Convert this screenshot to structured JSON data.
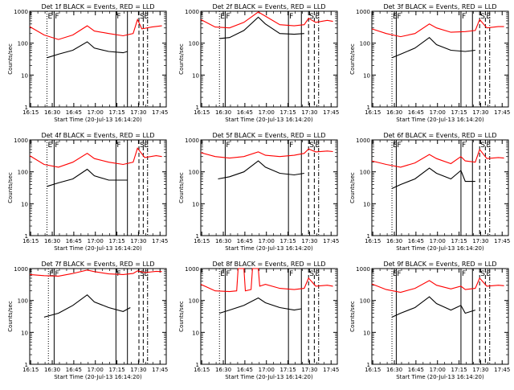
{
  "chart_data": {
    "type": "line",
    "layout": {
      "rows": 3,
      "cols": 3
    },
    "xlabel": "Start Time (20-Jul-13 16:14:20)",
    "ylabel": "Counts/sec",
    "yscale": "log",
    "ylim": [
      1,
      1000
    ],
    "y_tick_labels": [
      "1",
      "10",
      "100",
      "1000"
    ],
    "x_tick_labels": [
      "16:15",
      "16:30",
      "16:45",
      "17:00",
      "17:15",
      "17:30",
      "17:45"
    ],
    "x_domain_minutes": [
      0,
      95
    ],
    "colors": {
      "events": "#000000",
      "lld": "#ff0000",
      "frame": "#000000"
    },
    "panels": [
      {
        "title": "Det 1f BLACK = Events, RED = LLD",
        "markers": [
          {
            "t": 12,
            "style": "dotted",
            "label": "E"
          },
          {
            "t": 17,
            "style": "solid",
            "label": "F"
          },
          {
            "t": 60,
            "style": "solid",
            "label": "F"
          },
          {
            "t": 68,
            "style": "solid",
            "label": ""
          },
          {
            "t": 76,
            "style": "dashed",
            "label": "S"
          },
          {
            "t": 79,
            "style": "dashed",
            "label": "E"
          },
          {
            "t": 82,
            "style": "dashdot",
            "label": ""
          }
        ],
        "lld": [
          [
            0,
            330
          ],
          [
            10,
            180
          ],
          [
            20,
            130
          ],
          [
            30,
            180
          ],
          [
            40,
            350
          ],
          [
            45,
            240
          ],
          [
            55,
            200
          ],
          [
            65,
            170
          ],
          [
            72,
            200
          ],
          [
            75,
            550
          ],
          [
            78,
            280
          ],
          [
            85,
            320
          ],
          [
            92,
            350
          ]
        ],
        "events": [
          [
            12,
            35
          ],
          [
            20,
            45
          ],
          [
            30,
            60
          ],
          [
            40,
            110
          ],
          [
            45,
            70
          ],
          [
            55,
            55
          ],
          [
            65,
            50
          ],
          [
            68,
            55
          ]
        ]
      },
      {
        "title": "Det 2f BLACK = Events, RED = LLD",
        "markers": [
          {
            "t": 13,
            "style": "dotted",
            "label": "E"
          },
          {
            "t": 17,
            "style": "solid",
            "label": "F"
          },
          {
            "t": 61,
            "style": "solid",
            "label": "F"
          },
          {
            "t": 70,
            "style": "solid",
            "label": ""
          },
          {
            "t": 75,
            "style": "dashed",
            "label": "S"
          },
          {
            "t": 79,
            "style": "dashed",
            "label": "E"
          },
          {
            "t": 82,
            "style": "dashdot",
            "label": ""
          }
        ],
        "lld": [
          [
            0,
            550
          ],
          [
            10,
            320
          ],
          [
            20,
            300
          ],
          [
            30,
            450
          ],
          [
            40,
            950
          ],
          [
            45,
            700
          ],
          [
            55,
            380
          ],
          [
            65,
            350
          ],
          [
            72,
            380
          ],
          [
            75,
            600
          ],
          [
            80,
            450
          ],
          [
            88,
            520
          ],
          [
            92,
            480
          ]
        ],
        "events": [
          [
            13,
            140
          ],
          [
            20,
            150
          ],
          [
            30,
            250
          ],
          [
            40,
            650
          ],
          [
            45,
            400
          ],
          [
            55,
            200
          ],
          [
            65,
            190
          ],
          [
            72,
            200
          ]
        ]
      },
      {
        "title": "Det 3f BLACK = Events, RED = LLD",
        "markers": [
          {
            "t": 14,
            "style": "dotted",
            "label": "E"
          },
          {
            "t": 17,
            "style": "solid",
            "label": "F"
          },
          {
            "t": 62,
            "style": "solid",
            "label": "F"
          },
          {
            "t": 70,
            "style": "solid",
            "label": ""
          },
          {
            "t": 75,
            "style": "dashed",
            "label": "S"
          },
          {
            "t": 79,
            "style": "dashed",
            "label": "E"
          },
          {
            "t": 82,
            "style": "dashdot",
            "label": ""
          }
        ],
        "lld": [
          [
            0,
            280
          ],
          [
            10,
            200
          ],
          [
            20,
            160
          ],
          [
            30,
            200
          ],
          [
            40,
            400
          ],
          [
            45,
            300
          ],
          [
            55,
            220
          ],
          [
            65,
            230
          ],
          [
            72,
            250
          ],
          [
            75,
            550
          ],
          [
            80,
            300
          ],
          [
            88,
            330
          ],
          [
            92,
            330
          ]
        ],
        "events": [
          [
            14,
            35
          ],
          [
            20,
            45
          ],
          [
            30,
            70
          ],
          [
            40,
            150
          ],
          [
            45,
            90
          ],
          [
            55,
            60
          ],
          [
            65,
            55
          ],
          [
            72,
            60
          ]
        ]
      },
      {
        "title": "Det 4f BLACK = Events, RED = LLD",
        "markers": [
          {
            "t": 12,
            "style": "dotted",
            "label": "E"
          },
          {
            "t": 17,
            "style": "solid",
            "label": "F"
          },
          {
            "t": 60,
            "style": "solid",
            "label": "F"
          },
          {
            "t": 68,
            "style": "solid",
            "label": ""
          },
          {
            "t": 76,
            "style": "dashed",
            "label": "S"
          },
          {
            "t": 79,
            "style": "dashed",
            "label": "E"
          },
          {
            "t": 82,
            "style": "dashdot",
            "label": ""
          }
        ],
        "lld": [
          [
            0,
            320
          ],
          [
            10,
            170
          ],
          [
            20,
            140
          ],
          [
            30,
            200
          ],
          [
            40,
            380
          ],
          [
            45,
            260
          ],
          [
            55,
            200
          ],
          [
            65,
            170
          ],
          [
            72,
            200
          ],
          [
            75,
            550
          ],
          [
            80,
            280
          ],
          [
            88,
            320
          ],
          [
            92,
            300
          ]
        ],
        "events": [
          [
            12,
            35
          ],
          [
            20,
            45
          ],
          [
            30,
            60
          ],
          [
            40,
            120
          ],
          [
            45,
            75
          ],
          [
            55,
            55
          ],
          [
            65,
            55
          ],
          [
            68,
            55
          ]
        ]
      },
      {
        "title": "Det 5f BLACK = Events, RED = LLD",
        "markers": [
          {
            "t": 17,
            "style": "solid",
            "label": "F"
          },
          {
            "t": 61,
            "style": "solid",
            "label": "F"
          },
          {
            "t": 70,
            "style": "solid",
            "label": ""
          },
          {
            "t": 75,
            "style": "dashed",
            "label": "S"
          },
          {
            "t": 79,
            "style": "dashed",
            "label": "E"
          },
          {
            "t": 82,
            "style": "dashdot",
            "label": ""
          }
        ],
        "lld": [
          [
            0,
            400
          ],
          [
            10,
            300
          ],
          [
            20,
            270
          ],
          [
            30,
            300
          ],
          [
            40,
            420
          ],
          [
            45,
            330
          ],
          [
            55,
            300
          ],
          [
            65,
            330
          ],
          [
            72,
            380
          ],
          [
            75,
            520
          ],
          [
            80,
            420
          ],
          [
            88,
            450
          ],
          [
            92,
            430
          ]
        ],
        "events": [
          [
            12,
            60
          ],
          [
            20,
            70
          ],
          [
            30,
            100
          ],
          [
            40,
            220
          ],
          [
            45,
            140
          ],
          [
            55,
            90
          ],
          [
            65,
            80
          ],
          [
            72,
            90
          ]
        ]
      },
      {
        "title": "Det 6f BLACK = Events, RED = LLD",
        "markers": [
          {
            "t": 14,
            "style": "dotted",
            "label": "E"
          },
          {
            "t": 17,
            "style": "solid",
            "label": "F"
          },
          {
            "t": 62,
            "style": "solid",
            "label": "F"
          },
          {
            "t": 70,
            "style": "solid",
            "label": ""
          },
          {
            "t": 75,
            "style": "dashed",
            "label": "S"
          },
          {
            "t": 79,
            "style": "dashed",
            "label": "E"
          },
          {
            "t": 82,
            "style": "dashdot",
            "label": ""
          }
        ],
        "lld": [
          [
            0,
            220
          ],
          [
            10,
            170
          ],
          [
            20,
            140
          ],
          [
            30,
            190
          ],
          [
            40,
            350
          ],
          [
            45,
            260
          ],
          [
            55,
            180
          ],
          [
            62,
            300
          ],
          [
            65,
            220
          ],
          [
            72,
            200
          ],
          [
            75,
            500
          ],
          [
            80,
            260
          ],
          [
            88,
            280
          ],
          [
            92,
            270
          ]
        ],
        "events": [
          [
            14,
            30
          ],
          [
            20,
            40
          ],
          [
            30,
            60
          ],
          [
            40,
            130
          ],
          [
            45,
            90
          ],
          [
            55,
            60
          ],
          [
            62,
            110
          ],
          [
            65,
            50
          ],
          [
            72,
            50
          ]
        ]
      },
      {
        "title": "Det 7f BLACK = Events, RED = LLD",
        "markers": [
          {
            "t": 13,
            "style": "dotted",
            "label": "E"
          },
          {
            "t": 17,
            "style": "solid",
            "label": "F"
          },
          {
            "t": 60,
            "style": "solid",
            "label": "F"
          },
          {
            "t": 68,
            "style": "solid",
            "label": ""
          },
          {
            "t": 76,
            "style": "dashed",
            "label": "S"
          },
          {
            "t": 79,
            "style": "dashed",
            "label": "E"
          },
          {
            "t": 82,
            "style": "dashdot",
            "label": ""
          }
        ],
        "lld": [
          [
            0,
            650
          ],
          [
            10,
            600
          ],
          [
            20,
            580
          ],
          [
            30,
            700
          ],
          [
            40,
            900
          ],
          [
            45,
            800
          ],
          [
            55,
            680
          ],
          [
            65,
            650
          ],
          [
            72,
            700
          ],
          [
            75,
            850
          ],
          [
            80,
            750
          ],
          [
            88,
            820
          ],
          [
            92,
            800
          ]
        ],
        "events": [
          [
            10,
            30
          ],
          [
            20,
            40
          ],
          [
            30,
            70
          ],
          [
            40,
            150
          ],
          [
            45,
            90
          ],
          [
            55,
            60
          ],
          [
            65,
            45
          ],
          [
            70,
            60
          ]
        ]
      },
      {
        "title": "Det 8f BLACK = Events, RED = LLD",
        "markers": [
          {
            "t": 13,
            "style": "dotted",
            "label": "E"
          },
          {
            "t": 17,
            "style": "solid",
            "label": "F"
          },
          {
            "t": 61,
            "style": "solid",
            "label": "F"
          },
          {
            "t": 70,
            "style": "solid",
            "label": ""
          },
          {
            "t": 75,
            "style": "dashed",
            "label": "S"
          },
          {
            "t": 79,
            "style": "dashed",
            "label": "E"
          },
          {
            "t": 82,
            "style": "dashdot",
            "label": ""
          }
        ],
        "lld": [
          [
            0,
            320
          ],
          [
            10,
            200
          ],
          [
            20,
            190
          ],
          [
            25,
            200
          ],
          [
            26,
            1000
          ],
          [
            30,
            1000
          ],
          [
            31,
            200
          ],
          [
            35,
            220
          ],
          [
            36,
            1000
          ],
          [
            40,
            1000
          ],
          [
            41,
            280
          ],
          [
            45,
            320
          ],
          [
            55,
            240
          ],
          [
            65,
            220
          ],
          [
            72,
            240
          ],
          [
            75,
            500
          ],
          [
            80,
            280
          ],
          [
            88,
            300
          ],
          [
            92,
            280
          ]
        ],
        "events": [
          [
            13,
            40
          ],
          [
            20,
            50
          ],
          [
            30,
            70
          ],
          [
            40,
            120
          ],
          [
            45,
            85
          ],
          [
            55,
            60
          ],
          [
            65,
            50
          ],
          [
            70,
            55
          ]
        ]
      },
      {
        "title": "Det 9f BLACK = Events, RED = LLD",
        "markers": [
          {
            "t": 14,
            "style": "dotted",
            "label": "E"
          },
          {
            "t": 17,
            "style": "solid",
            "label": "F"
          },
          {
            "t": 62,
            "style": "solid",
            "label": "F"
          },
          {
            "t": 70,
            "style": "solid",
            "label": ""
          },
          {
            "t": 75,
            "style": "dashed",
            "label": "S"
          },
          {
            "t": 79,
            "style": "dashed",
            "label": "E"
          },
          {
            "t": 82,
            "style": "dashdot",
            "label": ""
          }
        ],
        "lld": [
          [
            0,
            330
          ],
          [
            10,
            220
          ],
          [
            20,
            180
          ],
          [
            30,
            240
          ],
          [
            40,
            420
          ],
          [
            45,
            300
          ],
          [
            55,
            230
          ],
          [
            62,
            280
          ],
          [
            65,
            220
          ],
          [
            72,
            240
          ],
          [
            75,
            500
          ],
          [
            80,
            280
          ],
          [
            88,
            300
          ],
          [
            92,
            290
          ]
        ],
        "events": [
          [
            14,
            30
          ],
          [
            20,
            40
          ],
          [
            30,
            60
          ],
          [
            40,
            130
          ],
          [
            45,
            80
          ],
          [
            55,
            50
          ],
          [
            62,
            70
          ],
          [
            65,
            40
          ],
          [
            72,
            50
          ]
        ]
      }
    ]
  }
}
